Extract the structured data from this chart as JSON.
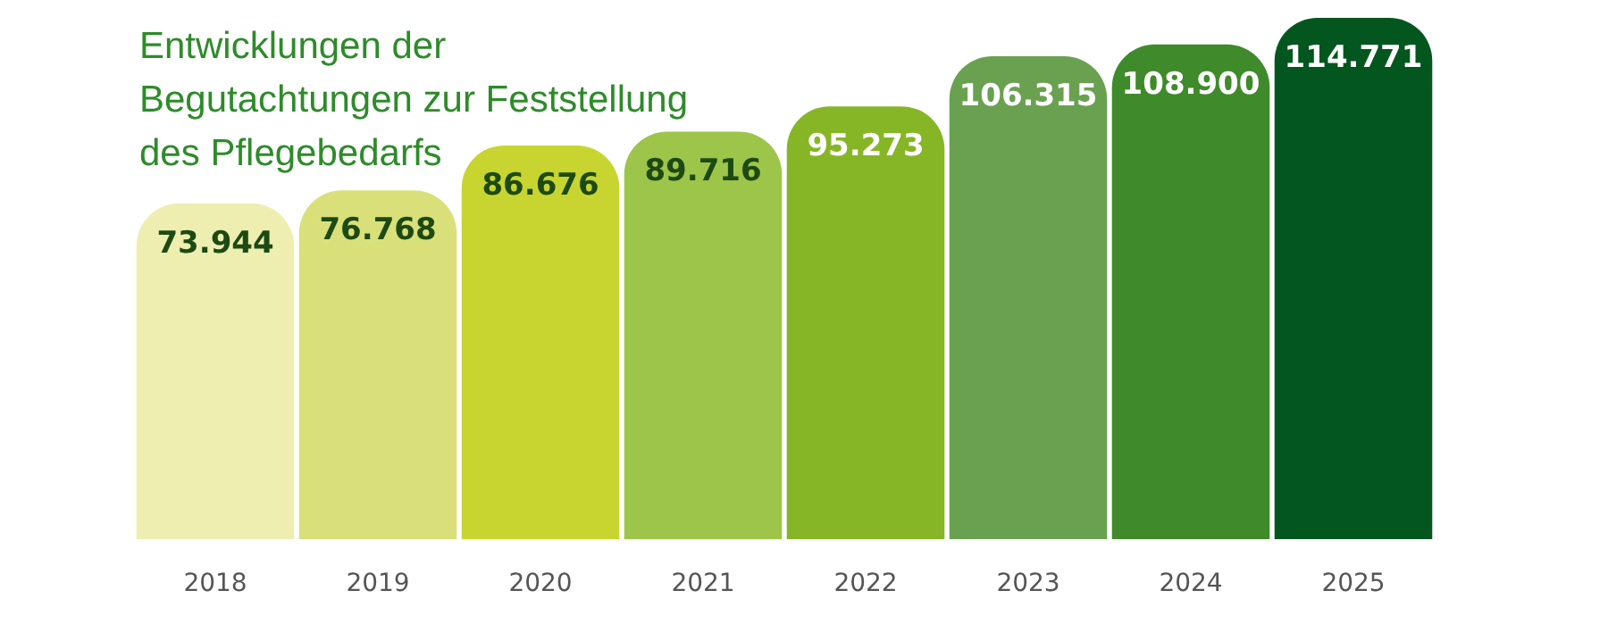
{
  "chart_data": {
    "type": "bar",
    "title": "Entwicklungen der\nBegutachtungen zur Feststellung\ndes Pflegebedarfs",
    "categories": [
      "2018",
      "2019",
      "2020",
      "2021",
      "2022",
      "2023",
      "2024",
      "2025"
    ],
    "values": [
      73944,
      76768,
      86676,
      89716,
      95273,
      106315,
      108900,
      114771
    ],
    "value_labels": [
      "73.944",
      "76.768",
      "86.676",
      "89.716",
      "95.273",
      "106.315",
      "108.900",
      "114.771"
    ],
    "colors": [
      "#eeeeb0",
      "#d9e07a",
      "#c8d531",
      "#9cc54a",
      "#86b626",
      "#6aa150",
      "#3f8a2a",
      "#04561f"
    ]
  }
}
